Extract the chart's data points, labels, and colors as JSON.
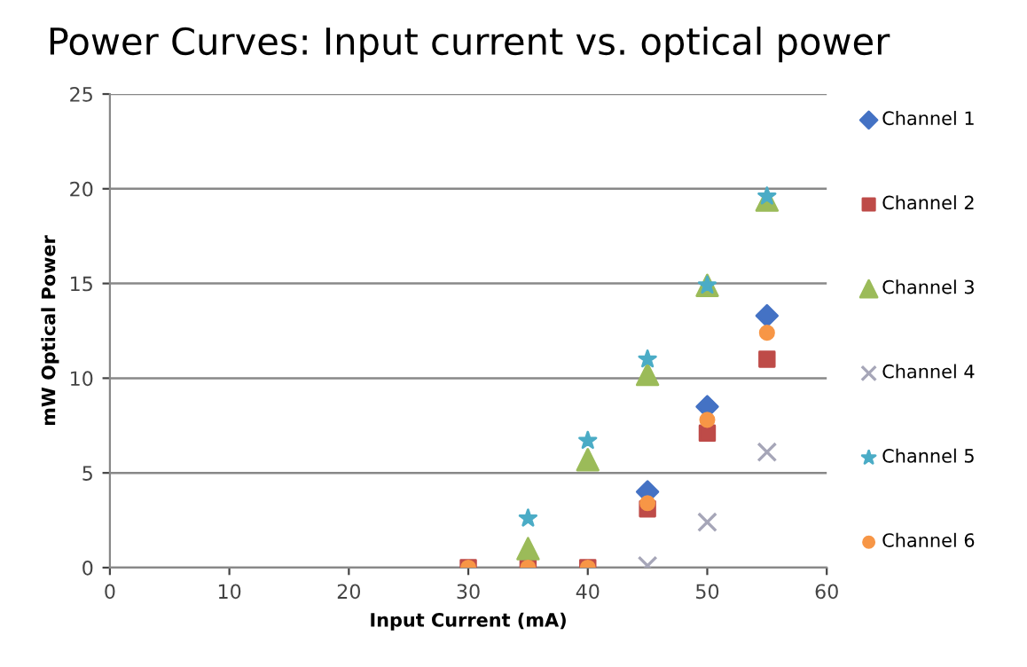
{
  "chart_data": {
    "type": "scatter",
    "title": "Power Curves: Input current vs. optical power",
    "xlabel": "Input Current (mA)",
    "ylabel": "mW Optical Power",
    "x": [
      30,
      35,
      40,
      45,
      50,
      55
    ],
    "series": [
      {
        "name": "Channel 1",
        "color": "#4472c4",
        "marker": "diamond",
        "values": [
          null,
          null,
          null,
          4.0,
          8.5,
          13.3
        ]
      },
      {
        "name": "Channel 2",
        "color": "#be4b48",
        "marker": "square",
        "values": [
          0,
          0,
          0,
          3.1,
          7.1,
          11.0
        ]
      },
      {
        "name": "Channel 3",
        "color": "#9bbb59",
        "marker": "triangle",
        "values": [
          null,
          1.0,
          5.7,
          10.2,
          14.9,
          19.4
        ]
      },
      {
        "name": "Channel 4",
        "color": "#a6a6b8",
        "marker": "cross",
        "values": [
          null,
          null,
          null,
          0.1,
          2.4,
          6.1
        ]
      },
      {
        "name": "Channel 5",
        "color": "#4bacc6",
        "marker": "star",
        "values": [
          null,
          2.6,
          6.7,
          11.0,
          14.9,
          19.6
        ]
      },
      {
        "name": "Channel 6",
        "color": "#f79646",
        "marker": "circle",
        "values": [
          0,
          0,
          0,
          3.4,
          7.8,
          12.4
        ]
      }
    ],
    "xlim": [
      0,
      60
    ],
    "xticks": [
      0,
      10,
      20,
      30,
      40,
      50,
      60
    ],
    "ylim": [
      0,
      25
    ],
    "yticks": [
      0,
      5,
      10,
      15,
      20,
      25
    ],
    "grid": "y",
    "legend": "right"
  }
}
